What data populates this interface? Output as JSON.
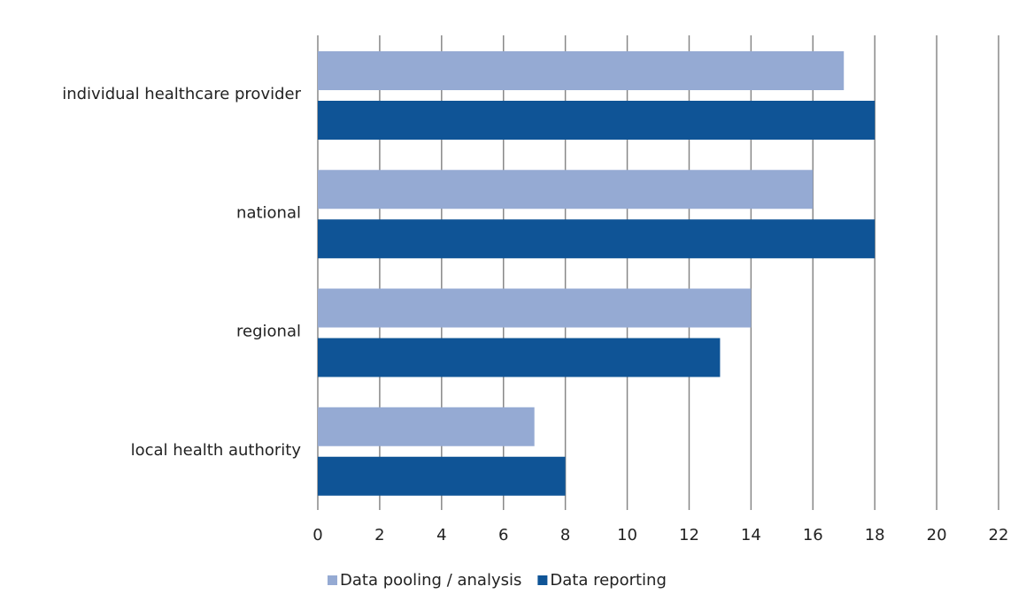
{
  "chart_data": {
    "type": "bar",
    "orientation": "horizontal",
    "categories": [
      "individual healthcare provider",
      "national",
      "regional",
      "local health authority"
    ],
    "series": [
      {
        "name": "Data pooling / analysis",
        "color": "#95aad3",
        "values": [
          17,
          16,
          14,
          7
        ]
      },
      {
        "name": "Data reporting",
        "color": "#0f5496",
        "values": [
          18,
          18,
          13,
          8
        ]
      }
    ],
    "xlim": [
      0,
      22
    ],
    "xticks": [
      0,
      2,
      4,
      6,
      8,
      10,
      12,
      14,
      16,
      18,
      20,
      22
    ],
    "grid": true,
    "legend": "bottom"
  }
}
